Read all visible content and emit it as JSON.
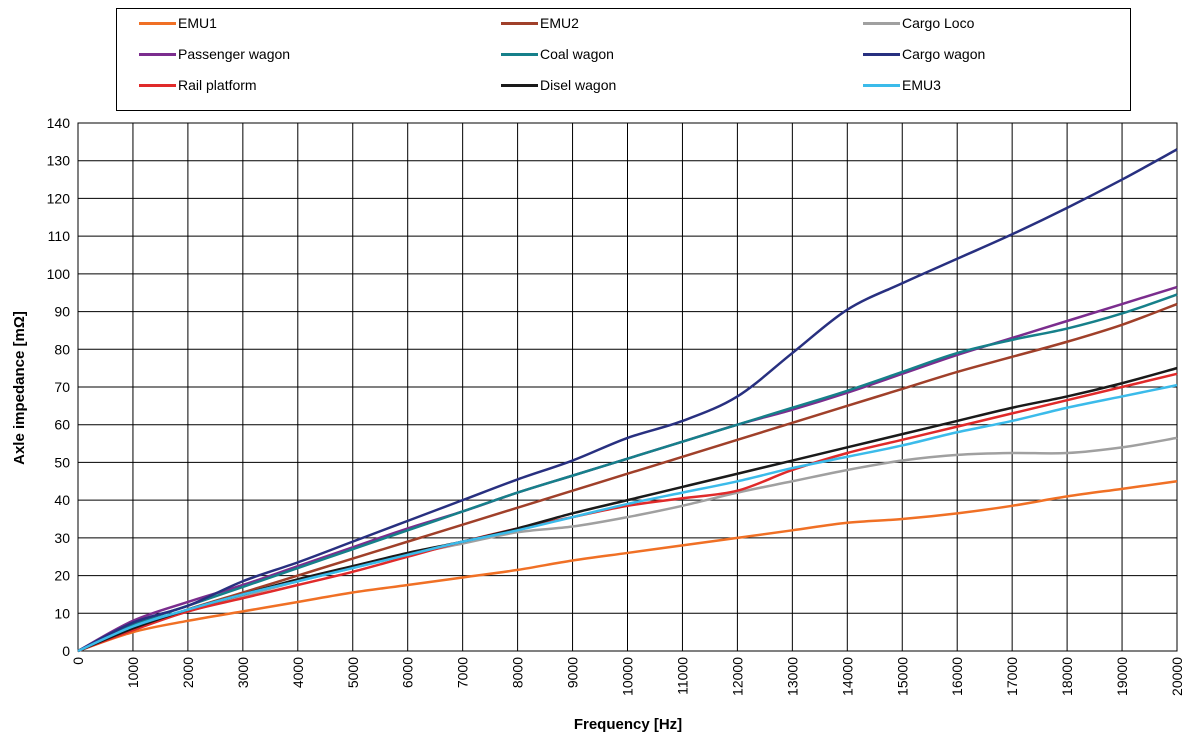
{
  "chart_data": {
    "type": "line",
    "title": "",
    "xlabel": "Frequency [Hz]",
    "ylabel": "Axle impedance [mΩ]",
    "xlim": [
      0,
      20000
    ],
    "ylim": [
      0,
      140
    ],
    "x_ticks": [
      "0",
      "1000",
      "2000",
      "3000",
      "4000",
      "5000",
      "6000",
      "7000",
      "8000",
      "9000",
      "10000",
      "11000",
      "12000",
      "13000",
      "14000",
      "15000",
      "16000",
      "17000",
      "18000",
      "19000",
      "20000"
    ],
    "y_ticks": [
      "0",
      "10",
      "20",
      "30",
      "40",
      "50",
      "60",
      "70",
      "80",
      "90",
      "100",
      "110",
      "120",
      "130",
      "140"
    ],
    "grid": true,
    "legend_position": "top",
    "x": [
      0,
      1000,
      2000,
      3000,
      4000,
      5000,
      6000,
      7000,
      8000,
      9000,
      10000,
      11000,
      12000,
      13000,
      14000,
      15000,
      16000,
      17000,
      18000,
      19000,
      20000
    ],
    "series": [
      {
        "name": "EMU1",
        "color": "#f07025",
        "values": [
          0,
          5,
          8,
          10.5,
          13,
          15.5,
          17.5,
          19.5,
          21.5,
          24,
          26,
          28,
          30,
          32,
          34,
          35,
          36.5,
          38.5,
          41,
          43,
          45
        ]
      },
      {
        "name": "EMU2",
        "color": "#a0402a",
        "values": [
          0,
          6,
          11,
          15.5,
          20,
          24.5,
          29,
          33.5,
          38,
          42.5,
          47,
          51.5,
          56,
          60.5,
          65,
          69.5,
          74,
          78,
          82,
          86.5,
          92
        ]
      },
      {
        "name": "Cargo Loco",
        "color": "#a0a0a0",
        "values": [
          0,
          6,
          10.5,
          14.5,
          18.5,
          22,
          25.5,
          28.5,
          31.5,
          33,
          35.5,
          38.5,
          42,
          45,
          48,
          50.5,
          52,
          52.5,
          52.5,
          54,
          56.5
        ]
      },
      {
        "name": "Passenger wagon",
        "color": "#7b2d8e",
        "values": [
          0,
          8,
          13,
          17.5,
          22.5,
          27.5,
          32.5,
          37,
          42,
          46.5,
          51,
          55.5,
          60,
          64,
          68.5,
          73.5,
          78.5,
          83,
          87.5,
          92,
          96.5
        ]
      },
      {
        "name": "Coal wagon",
        "color": "#16808a",
        "values": [
          0,
          7,
          12,
          17,
          22,
          27,
          32,
          37,
          42,
          46.5,
          51,
          55.5,
          60,
          64.5,
          69,
          74,
          79,
          82.5,
          85.5,
          89.5,
          94.5
        ]
      },
      {
        "name": "Cargo wagon",
        "color": "#283080",
        "values": [
          0,
          7.5,
          12,
          18.5,
          23.5,
          29,
          34.5,
          40,
          45.5,
          50.5,
          56.5,
          61,
          67.5,
          79,
          90.5,
          97.5,
          104,
          110.5,
          117.5,
          125,
          133
        ]
      },
      {
        "name": "Rail platform",
        "color": "#e02a2a",
        "values": [
          0,
          5.5,
          10.5,
          14,
          17.5,
          21,
          25,
          29,
          32.5,
          35.5,
          38.5,
          40.5,
          42.5,
          48,
          52.5,
          56,
          59.5,
          63,
          66.5,
          70,
          73.5
        ]
      },
      {
        "name": "Disel wagon",
        "color": "#1a1a1a",
        "values": [
          0,
          6,
          11,
          15,
          19,
          22.5,
          26,
          29,
          32.5,
          36.5,
          40,
          43.5,
          47,
          50.5,
          54,
          57.5,
          61,
          64.5,
          67.5,
          71,
          75
        ]
      },
      {
        "name": "EMU3",
        "color": "#3bbbea",
        "values": [
          0,
          6.5,
          11,
          15,
          18.5,
          22,
          25.5,
          29,
          32,
          35.5,
          39,
          42,
          45,
          48.5,
          51.5,
          54.5,
          58,
          61,
          64.5,
          67.5,
          70.5
        ]
      }
    ]
  }
}
